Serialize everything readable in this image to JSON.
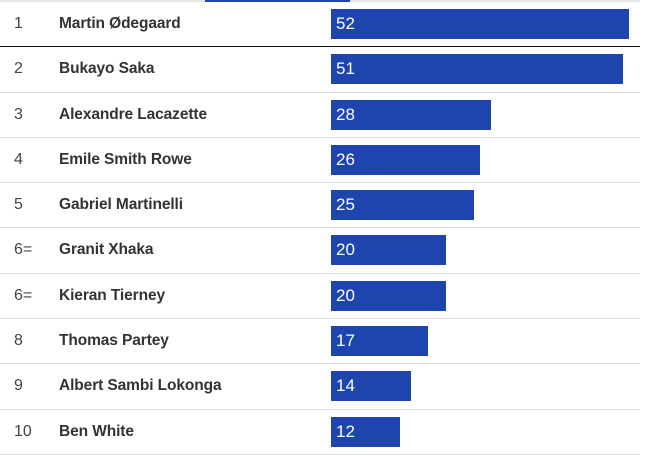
{
  "chart_data": {
    "type": "bar",
    "orientation": "horizontal",
    "bar_color": "#1e44ad",
    "xlim": [
      0,
      52
    ],
    "rows": [
      {
        "rank": "1",
        "name": "Martin Ødegaard",
        "value": 52
      },
      {
        "rank": "2",
        "name": "Bukayo Saka",
        "value": 51
      },
      {
        "rank": "3",
        "name": "Alexandre Lacazette",
        "value": 28
      },
      {
        "rank": "4",
        "name": "Emile Smith Rowe",
        "value": 26
      },
      {
        "rank": "5",
        "name": "Gabriel Martinelli",
        "value": 25
      },
      {
        "rank": "6=",
        "name": "Granit Xhaka",
        "value": 20
      },
      {
        "rank": "6=",
        "name": "Kieran Tierney",
        "value": 20
      },
      {
        "rank": "8",
        "name": "Thomas Partey",
        "value": 17
      },
      {
        "rank": "9",
        "name": "Albert Sambi Lokonga",
        "value": 14
      },
      {
        "rank": "10",
        "name": "Ben White",
        "value": 12
      }
    ]
  }
}
